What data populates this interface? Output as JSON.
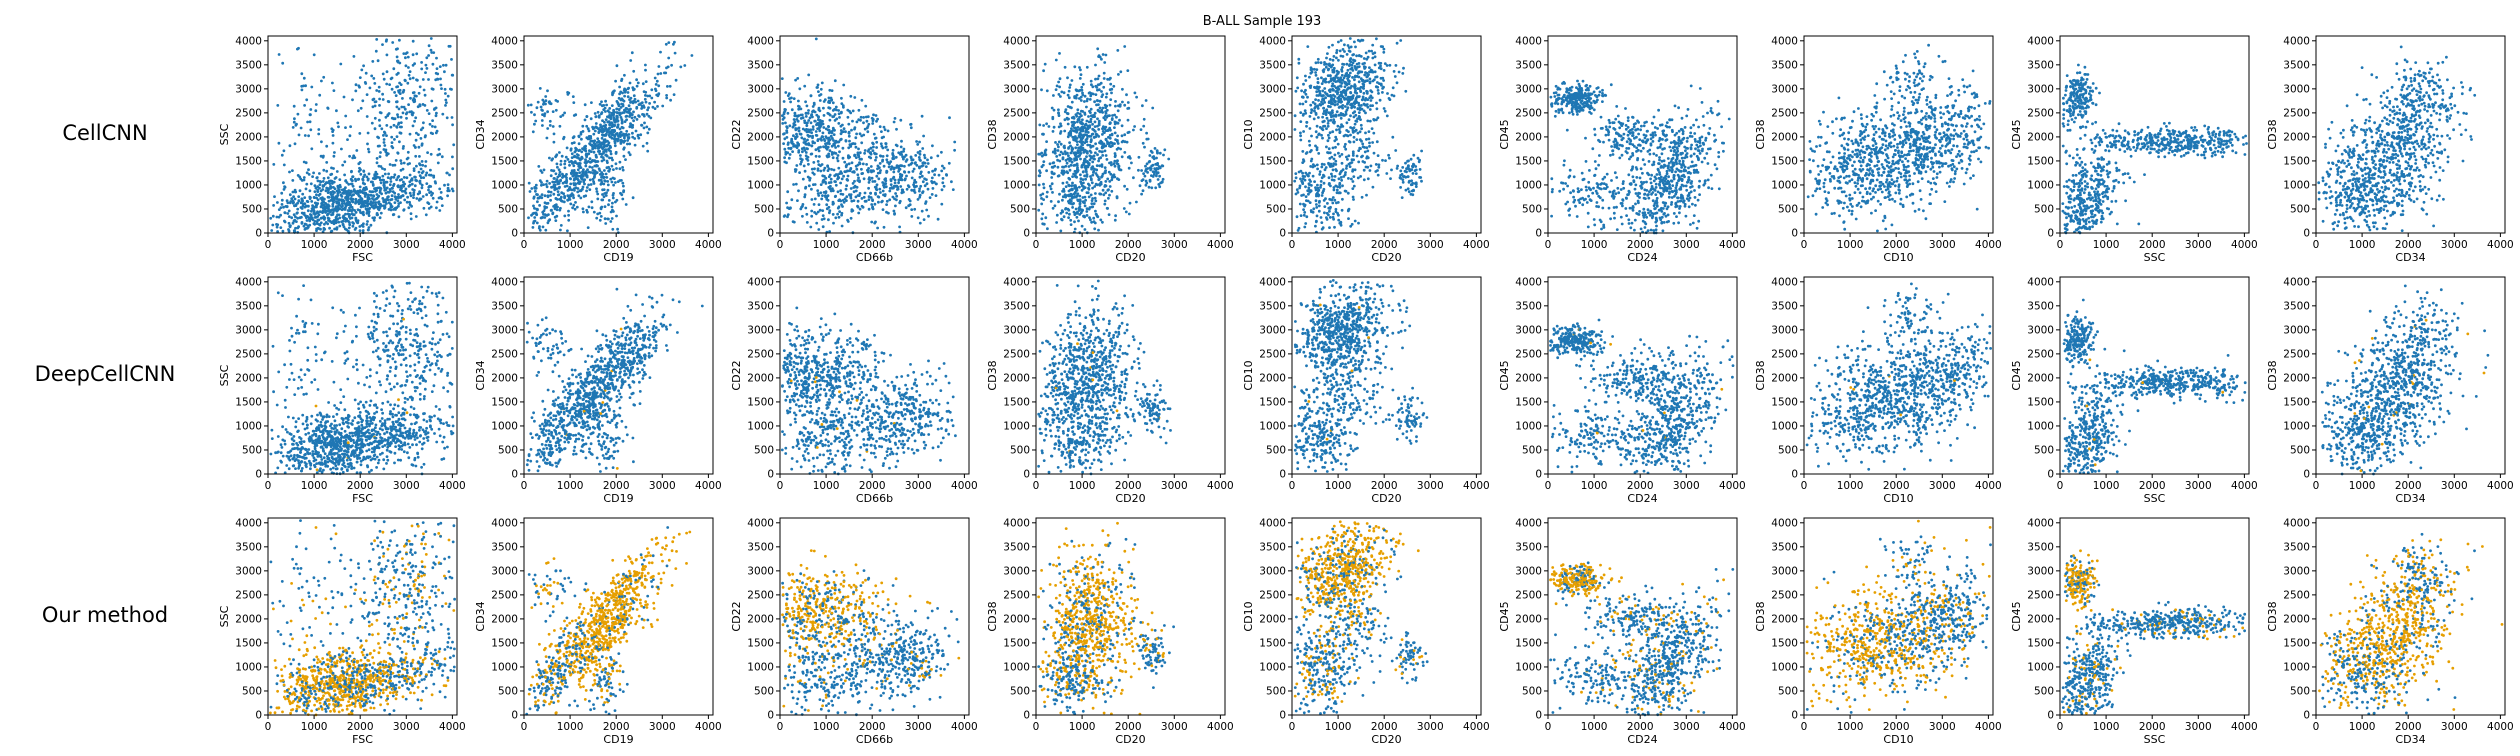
{
  "figure": {
    "title": "B-ALL Sample 193",
    "rows": [
      {
        "label": "CellCNN"
      },
      {
        "label": "DeepCellCNN"
      },
      {
        "label": "Our method"
      }
    ],
    "colors": {
      "blue": "#1f77b4",
      "orange": "#e69f00"
    }
  },
  "chart_data": {
    "type": "scatter",
    "title": "B-ALL Sample 193",
    "xlim": [
      0,
      4100
    ],
    "ylim": [
      0,
      4100
    ],
    "xticks": [
      0,
      1000,
      2000,
      3000,
      4000
    ],
    "yticks": [
      0,
      500,
      1000,
      1500,
      2000,
      2500,
      3000,
      3500,
      4000
    ],
    "grid": false,
    "panels": [
      {
        "xlabel": "FSC",
        "ylabel": "SSC"
      },
      {
        "xlabel": "CD19",
        "ylabel": "CD34"
      },
      {
        "xlabel": "CD66b",
        "ylabel": "CD22"
      },
      {
        "xlabel": "CD20",
        "ylabel": "CD38"
      },
      {
        "xlabel": "CD20",
        "ylabel": "CD10"
      },
      {
        "xlabel": "CD24",
        "ylabel": "CD45"
      },
      {
        "xlabel": "CD10",
        "ylabel": "CD38"
      },
      {
        "xlabel": "SSC",
        "ylabel": "CD45"
      },
      {
        "xlabel": "CD34",
        "ylabel": "CD38"
      }
    ]
  }
}
